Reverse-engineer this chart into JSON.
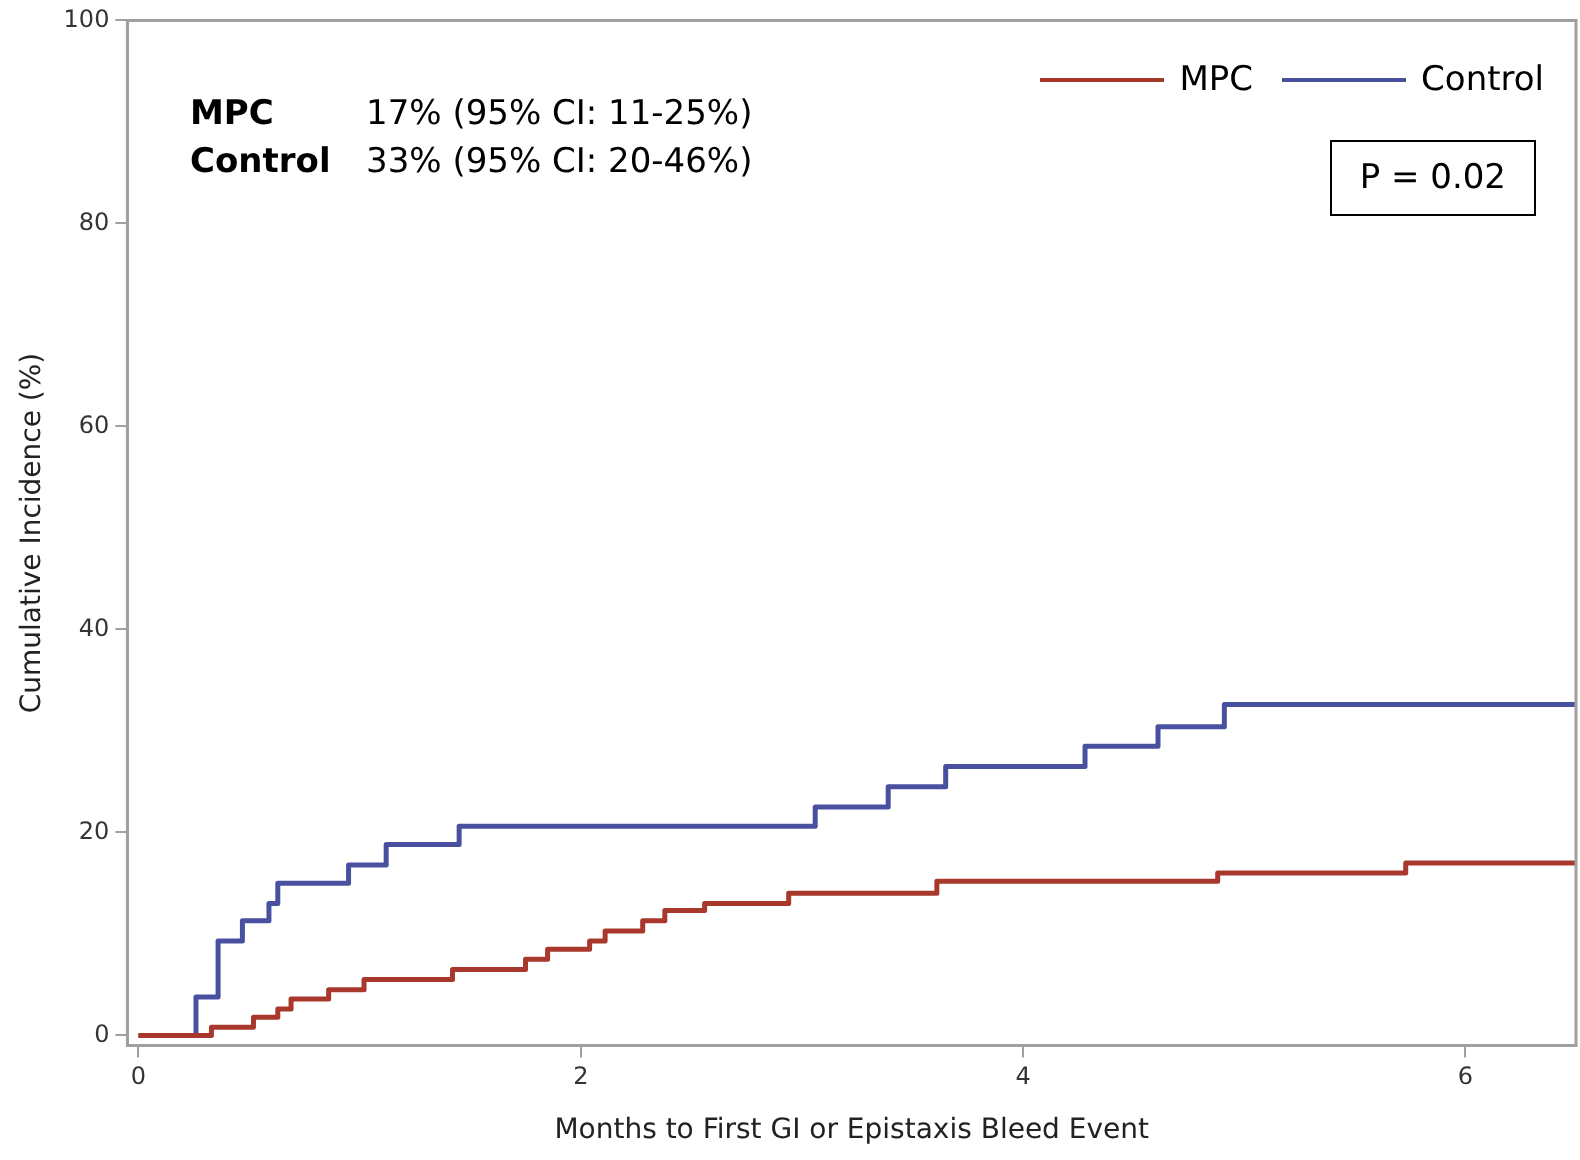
{
  "chart_data": {
    "type": "step",
    "xlabel": "Months to First GI or Epistaxis Bleed Event",
    "ylabel": "Cumulative Incidence (%)",
    "xlim": [
      -0.05,
      6.5
    ],
    "xticks": [
      0,
      2,
      4,
      6
    ],
    "ylim": [
      -1,
      100
    ],
    "yticks": [
      0,
      20,
      40,
      60,
      80,
      100
    ],
    "grid": false,
    "legend": "top right",
    "marker": "none",
    "line_style": "solid",
    "annotations": [
      "MPC 17% (95% CI: 11-25%)",
      "Control 33% (95% CI: 20-46%)",
      "P = 0.02"
    ],
    "series": [
      {
        "name": "MPC",
        "color": "#a8382c",
        "x": [
          0,
          0.33,
          0.52,
          0.63,
          0.69,
          0.86,
          1.02,
          1.42,
          1.75,
          1.85,
          2.04,
          2.11,
          2.28,
          2.38,
          2.56,
          2.94,
          3.61,
          4.88,
          5.73,
          6.5
        ],
        "values": [
          0,
          0.8,
          1.8,
          2.6,
          3.6,
          4.5,
          5.5,
          6.5,
          7.5,
          8.5,
          9.3,
          10.3,
          11.3,
          12.3,
          13.0,
          14.0,
          15.2,
          16.0,
          17.0,
          17.0
        ]
      },
      {
        "name": "Control",
        "color": "#4a50a0",
        "x": [
          0,
          0.26,
          0.36,
          0.47,
          0.59,
          0.63,
          0.95,
          1.12,
          1.45,
          3.06,
          3.39,
          3.65,
          4.28,
          4.61,
          4.91,
          6.5
        ],
        "values": [
          0,
          3.8,
          9.3,
          11.3,
          13.0,
          15.0,
          16.8,
          18.8,
          20.6,
          22.5,
          24.5,
          26.5,
          28.5,
          30.4,
          32.6,
          32.6
        ]
      }
    ]
  }
}
